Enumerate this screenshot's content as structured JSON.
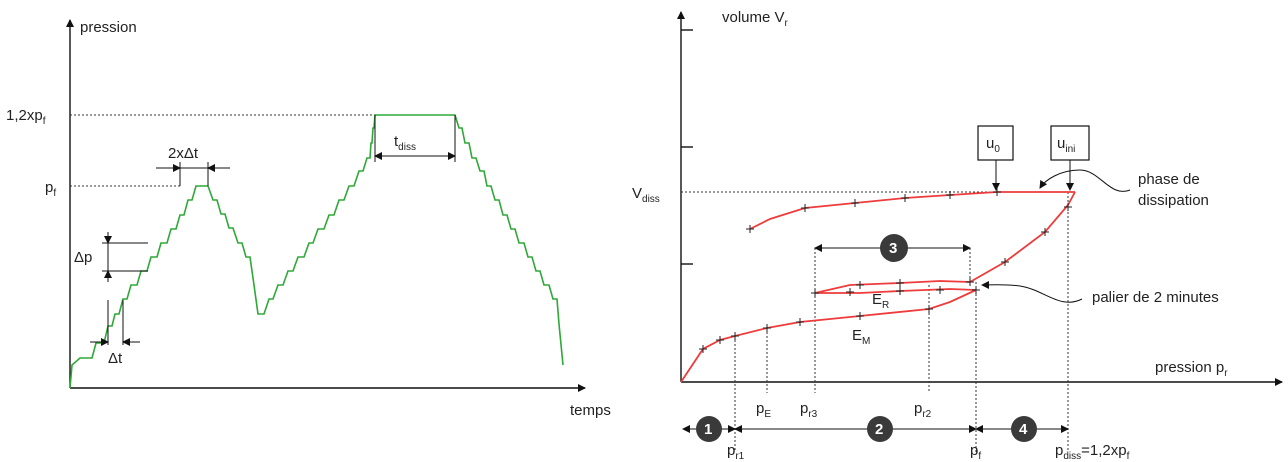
{
  "left_diagram": {
    "y_axis_label": "pression",
    "x_axis_label": "temps",
    "tick_12xpf": {
      "main": "1,2xp",
      "sub": "f"
    },
    "tick_pf": {
      "main": "p",
      "sub": "f"
    },
    "delta_p": "Δp",
    "delta_t": "Δt",
    "two_delta_t": "2xΔt",
    "t_diss": {
      "main": "t",
      "sub": "diss"
    }
  },
  "right_diagram": {
    "y_axis_label": {
      "main": "volume V",
      "sub": "r"
    },
    "x_axis_label": {
      "main": "pression p",
      "sub": "r"
    },
    "v_diss": {
      "main": "V",
      "sub": "diss"
    },
    "box_u0": {
      "main": "u",
      "sub": "0"
    },
    "box_uini": {
      "main": "u",
      "sub": "ini"
    },
    "phase_label_1": "phase de",
    "phase_label_2": "dissipation",
    "palier_label": "palier de 2 minutes",
    "ER": {
      "main": "E",
      "sub": "R"
    },
    "EM": {
      "main": "E",
      "sub": "M"
    },
    "pE": {
      "main": "p",
      "sub": "E"
    },
    "pr3": {
      "main": "p",
      "sub": "r3"
    },
    "pr2": {
      "main": "p",
      "sub": "r2"
    },
    "pr1": {
      "main": "p",
      "sub": "r1"
    },
    "pf": {
      "main": "p",
      "sub": "f"
    },
    "pdiss": {
      "main": "p",
      "sub": "diss",
      "suffix": "=1,2xp",
      "suffix_sub": "f"
    },
    "phase_numbers": [
      "1",
      "2",
      "3",
      "4"
    ]
  },
  "colors": {
    "step_curve": "#2ea836",
    "volume_curve": "#ee3b3b",
    "phase_circle": "#3a3a3a"
  }
}
